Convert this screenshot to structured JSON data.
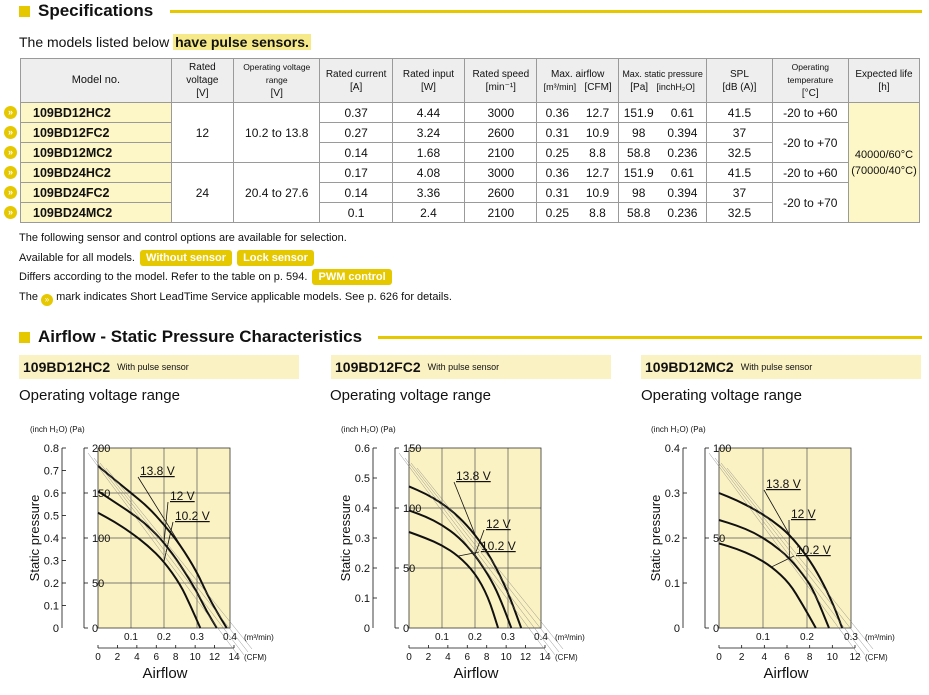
{
  "spec_section": {
    "title": "Specifications",
    "subtitle_prefix": "The models listed below",
    "subtitle_highlight": "have pulse sensors."
  },
  "table": {
    "headers": {
      "model": "Model no.",
      "rated_voltage": "Rated voltage",
      "rated_voltage_unit": "[V]",
      "op_voltage": "Operating voltage range",
      "op_voltage_unit": "[V]",
      "current": "Rated current",
      "current_unit": "[A]",
      "input": "Rated input",
      "input_unit": "[W]",
      "speed": "Rated speed",
      "speed_unit": "[min⁻¹]",
      "airflow": "Max. airflow",
      "airflow_unit1": "[m³/min]",
      "airflow_unit2": "[CFM]",
      "pressure": "Max. static pressure",
      "pressure_unit1": "[Pa]",
      "pressure_unit2": "[inchH₂O]",
      "spl": "SPL",
      "spl_unit": "[dB (A)]",
      "temp": "Operating temperature",
      "temp_unit": "[°C]",
      "life": "Expected life",
      "life_unit": "[h]"
    },
    "rows": [
      {
        "model": "109BD12HC2",
        "current": "0.37",
        "input": "4.44",
        "speed": "3000",
        "m3": "0.36",
        "cfm": "12.7",
        "pa": "151.9",
        "inch": "0.61",
        "spl": "41.5"
      },
      {
        "model": "109BD12FC2",
        "current": "0.27",
        "input": "3.24",
        "speed": "2600",
        "m3": "0.31",
        "cfm": "10.9",
        "pa": "98",
        "inch": "0.394",
        "spl": "37"
      },
      {
        "model": "109BD12MC2",
        "current": "0.14",
        "input": "1.68",
        "speed": "2100",
        "m3": "0.25",
        "cfm": "8.8",
        "pa": "58.8",
        "inch": "0.236",
        "spl": "32.5"
      },
      {
        "model": "109BD24HC2",
        "current": "0.17",
        "input": "4.08",
        "speed": "3000",
        "m3": "0.36",
        "cfm": "12.7",
        "pa": "151.9",
        "inch": "0.61",
        "spl": "41.5"
      },
      {
        "model": "109BD24FC2",
        "current": "0.14",
        "input": "3.36",
        "speed": "2600",
        "m3": "0.31",
        "cfm": "10.9",
        "pa": "98",
        "inch": "0.394",
        "spl": "37"
      },
      {
        "model": "109BD24MC2",
        "current": "0.1",
        "input": "2.4",
        "speed": "2100",
        "m3": "0.25",
        "cfm": "8.8",
        "pa": "58.8",
        "inch": "0.236",
        "spl": "32.5"
      }
    ],
    "group12": {
      "rated_voltage": "12",
      "op_range": "10.2 to 13.8"
    },
    "group24": {
      "rated_voltage": "24",
      "op_range": "20.4 to 27.6"
    },
    "temps": {
      "a": "-20 to +60",
      "b": "-20 to +70"
    },
    "life": {
      "line1": "40000/60°C",
      "line2": "(70000/40°C)"
    },
    "arrow_glyph": "»"
  },
  "notes": {
    "line1": "The following sensor and control options are available for selection.",
    "line2_text": "Available for all models.",
    "badge_without": "Without sensor",
    "badge_lock": "Lock sensor",
    "line3_text": "Differs according to the model. Refer to the table on p. 594.",
    "badge_pwm": "PWM control",
    "line4_pre": "The",
    "line4_post": "mark indicates Short LeadTime Service applicable models. See p. 626 for details."
  },
  "airflow_section": {
    "title": "Airflow - Static Pressure Characteristics",
    "op_label": "Operating voltage range",
    "sensor_note": "With pulse sensor"
  },
  "chart_data": [
    {
      "type": "line",
      "model": "109BD12HC2",
      "xlabel": "Airflow",
      "ylabel": "Static pressure",
      "x_unit_top": "(m³/min)",
      "x_unit_bottom": "(CFM)",
      "y_unit_left": "(inch H₂O)",
      "y_unit_right": "(Pa)",
      "x_ticks_m3": [
        "0.1",
        "0.2",
        "0.3",
        "0.4"
      ],
      "x_ticks_cfm": [
        "0",
        "2",
        "4",
        "6",
        "8",
        "10",
        "12",
        "14"
      ],
      "y_ticks_inch": [
        "0.1",
        "0.2",
        "0.3",
        "0.4",
        "0.5",
        "0.6",
        "0.7",
        "0.8"
      ],
      "y_ticks_pa": [
        "0",
        "50",
        "100",
        "150",
        "200"
      ],
      "xlim": [
        0,
        0.4
      ],
      "ylim_pa": [
        0,
        200
      ],
      "series": [
        {
          "name": "13.8 V",
          "x": [
            0,
            0.05,
            0.1,
            0.15,
            0.2,
            0.25,
            0.3,
            0.33,
            0.36,
            0.39
          ],
          "y": [
            180,
            165,
            150,
            135,
            115,
            92,
            62,
            38,
            18,
            0
          ]
        },
        {
          "name": "12 V",
          "x": [
            0,
            0.05,
            0.1,
            0.15,
            0.2,
            0.25,
            0.3,
            0.33,
            0.36
          ],
          "y": [
            152,
            140,
            128,
            114,
            95,
            70,
            40,
            18,
            0
          ]
        },
        {
          "name": "10.2 V",
          "x": [
            0,
            0.05,
            0.1,
            0.15,
            0.2,
            0.25,
            0.28,
            0.31
          ],
          "y": [
            128,
            118,
            106,
            92,
            74,
            48,
            25,
            0
          ]
        }
      ]
    },
    {
      "type": "line",
      "model": "109BD12FC2",
      "xlabel": "Airflow",
      "ylabel": "Static pressure",
      "x_unit_top": "(m³/min)",
      "x_unit_bottom": "(CFM)",
      "y_unit_left": "(inch H₂O)",
      "y_unit_right": "(Pa)",
      "x_ticks_m3": [
        "0.1",
        "0.2",
        "0.3",
        "0.4"
      ],
      "x_ticks_cfm": [
        "0",
        "2",
        "4",
        "6",
        "8",
        "10",
        "12",
        "14"
      ],
      "y_ticks_inch": [
        "0.1",
        "0.2",
        "0.3",
        "0.4",
        "0.5",
        "0.6"
      ],
      "y_ticks_pa": [
        "0",
        "50",
        "100",
        "150"
      ],
      "xlim": [
        0,
        0.4
      ],
      "ylim_pa": [
        0,
        150
      ],
      "series": [
        {
          "name": "13.8 V",
          "x": [
            0,
            0.05,
            0.1,
            0.15,
            0.2,
            0.25,
            0.3,
            0.34
          ],
          "y": [
            118,
            112,
            104,
            93,
            78,
            58,
            30,
            0
          ]
        },
        {
          "name": "12 V",
          "x": [
            0,
            0.05,
            0.1,
            0.15,
            0.2,
            0.25,
            0.28,
            0.31
          ],
          "y": [
            98,
            93,
            86,
            76,
            61,
            40,
            22,
            0
          ]
        },
        {
          "name": "10.2 V",
          "x": [
            0,
            0.05,
            0.1,
            0.15,
            0.2,
            0.24,
            0.27
          ],
          "y": [
            80,
            75,
            69,
            60,
            46,
            26,
            0
          ]
        }
      ]
    },
    {
      "type": "line",
      "model": "109BD12MC2",
      "xlabel": "Airflow",
      "ylabel": "Static pressure",
      "x_unit_top": "(m³/min)",
      "x_unit_bottom": "(CFM)",
      "y_unit_left": "(inch H₂O)",
      "y_unit_right": "(Pa)",
      "x_ticks_m3": [
        "0.1",
        "0.2",
        "0.3"
      ],
      "x_ticks_cfm": [
        "0",
        "2",
        "4",
        "6",
        "8",
        "10",
        "12"
      ],
      "y_ticks_inch": [
        "0.1",
        "0.2",
        "0.3",
        "0.4"
      ],
      "y_ticks_pa": [
        "0",
        "50",
        "100"
      ],
      "xlim": [
        0,
        0.3
      ],
      "ylim_pa": [
        0,
        100
      ],
      "series": [
        {
          "name": "13.8 V",
          "x": [
            0,
            0.04,
            0.08,
            0.12,
            0.16,
            0.2,
            0.23,
            0.26,
            0.28
          ],
          "y": [
            75,
            71,
            66,
            60,
            52,
            40,
            28,
            13,
            0
          ]
        },
        {
          "name": "12 V",
          "x": [
            0,
            0.04,
            0.08,
            0.12,
            0.16,
            0.2,
            0.22,
            0.25
          ],
          "y": [
            60,
            57,
            53,
            47,
            39,
            27,
            18,
            0
          ]
        },
        {
          "name": "10.2 V",
          "x": [
            0,
            0.04,
            0.08,
            0.12,
            0.16,
            0.19,
            0.22
          ],
          "y": [
            47,
            44,
            40,
            34,
            25,
            13,
            0
          ]
        }
      ]
    }
  ]
}
